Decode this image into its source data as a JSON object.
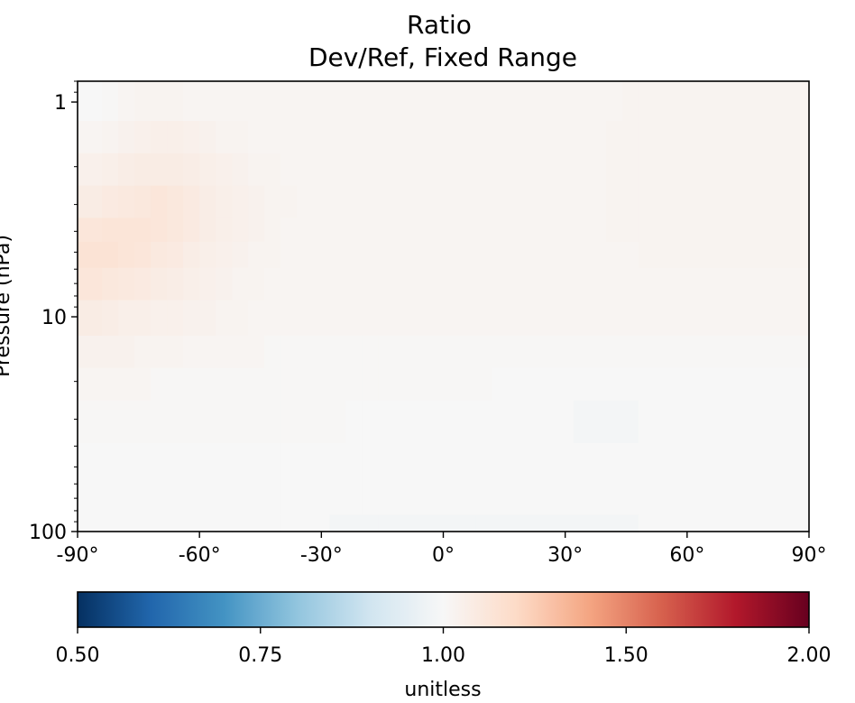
{
  "chart_data": {
    "type": "heatmap",
    "title": "Ratio",
    "subtitle": "Dev/Ref, Fixed Range",
    "xlabel": "",
    "ylabel": "Pressure (hPa)",
    "x_tick_labels": [
      "-90°",
      "-60°",
      "-30°",
      "0°",
      "30°",
      "60°",
      "90°"
    ],
    "x_tick_values": [
      -90,
      -60,
      -30,
      0,
      30,
      60,
      90
    ],
    "xlim": [
      -90,
      90
    ],
    "y_scale": "log",
    "ylim": [
      100,
      0.8
    ],
    "y_tick_labels": [
      "1",
      "10",
      "100"
    ],
    "y_tick_values": [
      1,
      10,
      100
    ],
    "grid": false,
    "colorbar": {
      "label": "unitless",
      "colormap": "RdBu_r",
      "vmin": 0.5,
      "vmax": 2.0,
      "tick_labels": [
        "0.50",
        "0.75",
        "1.00",
        "1.50",
        "2.00"
      ],
      "tick_values": [
        0.5,
        0.75,
        1.0,
        1.5,
        2.0
      ],
      "colors": [
        "#053061",
        "#2166ac",
        "#4393c3",
        "#92c5de",
        "#d1e5f0",
        "#f7f7f7",
        "#fddbc7",
        "#f4a582",
        "#d6604d",
        "#b2182b",
        "#67001f"
      ]
    },
    "x_centers": [
      -86,
      -82,
      -78,
      -74,
      -70,
      -66,
      -62,
      -58,
      -54,
      -50,
      -46,
      -42,
      -38,
      -34,
      -30,
      -26,
      -22,
      -18,
      -14,
      -10,
      -6,
      -2,
      2,
      6,
      10,
      14,
      18,
      22,
      26,
      30,
      34,
      38,
      42,
      46,
      50,
      54,
      58,
      62,
      66,
      70,
      74,
      78,
      82,
      86
    ],
    "levels_hPa": [
      1,
      1.5,
      2,
      3,
      4,
      5,
      7,
      10,
      15,
      20,
      30,
      50,
      70,
      100
    ],
    "values": [
      [
        1.0,
        1.01,
        1.02,
        1.03,
        1.03,
        1.03,
        1.02,
        1.02,
        1.02,
        1.02,
        1.02,
        1.02,
        1.02,
        1.02,
        1.02,
        1.02,
        1.02,
        1.02,
        1.02,
        1.02,
        1.02,
        1.02,
        1.02,
        1.02,
        1.02,
        1.02,
        1.02,
        1.02,
        1.02,
        1.02,
        1.02,
        1.02,
        1.02,
        1.03,
        1.03,
        1.03,
        1.03,
        1.03,
        1.03,
        1.03,
        1.03,
        1.03,
        1.03,
        1.03
      ],
      [
        1.02,
        1.03,
        1.04,
        1.05,
        1.06,
        1.06,
        1.05,
        1.04,
        1.03,
        1.03,
        1.02,
        1.02,
        1.02,
        1.02,
        1.02,
        1.02,
        1.02,
        1.02,
        1.02,
        1.02,
        1.02,
        1.02,
        1.02,
        1.02,
        1.02,
        1.02,
        1.02,
        1.02,
        1.02,
        1.02,
        1.02,
        1.02,
        1.03,
        1.03,
        1.03,
        1.03,
        1.03,
        1.03,
        1.03,
        1.03,
        1.03,
        1.03,
        1.03,
        1.03
      ],
      [
        1.05,
        1.06,
        1.07,
        1.08,
        1.08,
        1.08,
        1.07,
        1.06,
        1.05,
        1.04,
        1.03,
        1.03,
        1.02,
        1.02,
        1.02,
        1.02,
        1.02,
        1.02,
        1.02,
        1.02,
        1.02,
        1.02,
        1.02,
        1.02,
        1.02,
        1.02,
        1.02,
        1.02,
        1.02,
        1.02,
        1.02,
        1.02,
        1.03,
        1.03,
        1.03,
        1.03,
        1.03,
        1.03,
        1.03,
        1.03,
        1.03,
        1.03,
        1.03,
        1.03
      ],
      [
        1.08,
        1.09,
        1.1,
        1.11,
        1.12,
        1.11,
        1.09,
        1.07,
        1.06,
        1.05,
        1.04,
        1.03,
        1.03,
        1.02,
        1.02,
        1.02,
        1.02,
        1.02,
        1.02,
        1.02,
        1.02,
        1.02,
        1.02,
        1.02,
        1.02,
        1.02,
        1.02,
        1.02,
        1.02,
        1.02,
        1.02,
        1.02,
        1.03,
        1.03,
        1.03,
        1.03,
        1.03,
        1.03,
        1.03,
        1.03,
        1.03,
        1.03,
        1.03,
        1.03
      ],
      [
        1.12,
        1.13,
        1.13,
        1.13,
        1.12,
        1.11,
        1.09,
        1.07,
        1.06,
        1.05,
        1.04,
        1.03,
        1.02,
        1.02,
        1.02,
        1.02,
        1.02,
        1.02,
        1.02,
        1.02,
        1.02,
        1.02,
        1.02,
        1.02,
        1.02,
        1.02,
        1.02,
        1.02,
        1.02,
        1.02,
        1.02,
        1.02,
        1.03,
        1.03,
        1.03,
        1.03,
        1.03,
        1.03,
        1.03,
        1.03,
        1.03,
        1.03,
        1.03,
        1.03
      ],
      [
        1.14,
        1.14,
        1.13,
        1.12,
        1.1,
        1.09,
        1.07,
        1.06,
        1.05,
        1.04,
        1.03,
        1.03,
        1.02,
        1.02,
        1.02,
        1.02,
        1.02,
        1.02,
        1.02,
        1.02,
        1.02,
        1.02,
        1.02,
        1.02,
        1.02,
        1.02,
        1.02,
        1.02,
        1.02,
        1.02,
        1.02,
        1.02,
        1.02,
        1.02,
        1.03,
        1.03,
        1.03,
        1.03,
        1.03,
        1.03,
        1.03,
        1.03,
        1.03,
        1.03
      ],
      [
        1.12,
        1.11,
        1.1,
        1.09,
        1.08,
        1.07,
        1.06,
        1.05,
        1.04,
        1.03,
        1.03,
        1.02,
        1.02,
        1.02,
        1.02,
        1.02,
        1.02,
        1.02,
        1.02,
        1.02,
        1.02,
        1.02,
        1.02,
        1.02,
        1.02,
        1.02,
        1.02,
        1.02,
        1.02,
        1.02,
        1.02,
        1.02,
        1.02,
        1.02,
        1.02,
        1.02,
        1.02,
        1.02,
        1.02,
        1.02,
        1.02,
        1.02,
        1.02,
        1.02
      ],
      [
        1.08,
        1.07,
        1.06,
        1.06,
        1.05,
        1.05,
        1.04,
        1.04,
        1.03,
        1.03,
        1.02,
        1.02,
        1.02,
        1.02,
        1.02,
        1.02,
        1.02,
        1.02,
        1.02,
        1.02,
        1.02,
        1.02,
        1.02,
        1.02,
        1.02,
        1.02,
        1.02,
        1.02,
        1.02,
        1.02,
        1.02,
        1.02,
        1.02,
        1.02,
        1.02,
        1.02,
        1.02,
        1.02,
        1.02,
        1.02,
        1.02,
        1.02,
        1.02,
        1.02
      ],
      [
        1.04,
        1.04,
        1.04,
        1.03,
        1.03,
        1.03,
        1.02,
        1.02,
        1.02,
        1.02,
        1.02,
        1.01,
        1.01,
        1.01,
        1.01,
        1.01,
        1.01,
        1.01,
        1.01,
        1.01,
        1.01,
        1.01,
        1.01,
        1.01,
        1.01,
        1.01,
        1.01,
        1.01,
        1.01,
        1.01,
        1.01,
        1.01,
        1.01,
        1.01,
        1.01,
        1.01,
        1.01,
        1.01,
        1.01,
        1.01,
        1.01,
        1.01,
        1.01,
        1.01
      ],
      [
        1.02,
        1.02,
        1.02,
        1.02,
        1.01,
        1.01,
        1.01,
        1.01,
        1.01,
        1.01,
        1.01,
        1.01,
        1.01,
        1.01,
        1.01,
        1.01,
        1.01,
        1.01,
        1.01,
        1.01,
        1.01,
        1.01,
        1.01,
        1.01,
        1.01,
        1.0,
        1.0,
        1.0,
        1.0,
        1.0,
        1.0,
        1.0,
        1.0,
        1.0,
        1.0,
        1.0,
        1.0,
        1.0,
        1.0,
        1.0,
        1.0,
        1.0,
        1.0,
        1.0
      ],
      [
        1.01,
        1.01,
        1.01,
        1.01,
        1.01,
        1.01,
        1.01,
        1.01,
        1.01,
        1.01,
        1.01,
        1.01,
        1.01,
        1.01,
        1.01,
        1.01,
        1.0,
        1.0,
        1.0,
        1.0,
        1.0,
        1.0,
        1.0,
        1.0,
        1.0,
        1.0,
        1.0,
        1.0,
        1.0,
        1.0,
        0.99,
        0.99,
        0.99,
        0.99,
        1.0,
        1.0,
        1.0,
        1.0,
        1.0,
        1.0,
        1.0,
        1.0,
        1.0,
        1.0
      ],
      [
        1.0,
        1.0,
        1.0,
        1.0,
        1.0,
        1.0,
        1.0,
        1.0,
        1.0,
        1.0,
        1.0,
        1.0,
        1.0,
        1.0,
        1.0,
        1.0,
        1.0,
        1.0,
        1.0,
        1.0,
        1.0,
        1.0,
        1.0,
        1.0,
        1.0,
        1.0,
        1.0,
        1.0,
        1.0,
        1.0,
        1.0,
        1.0,
        1.0,
        1.0,
        1.0,
        1.0,
        1.0,
        1.0,
        1.0,
        1.0,
        1.0,
        1.0,
        1.0,
        1.0
      ],
      [
        1.0,
        1.0,
        1.0,
        1.0,
        1.0,
        1.0,
        1.0,
        1.0,
        1.0,
        1.0,
        1.0,
        1.0,
        1.0,
        1.0,
        1.0,
        1.0,
        1.0,
        1.0,
        1.0,
        1.0,
        1.0,
        1.0,
        1.0,
        1.0,
        1.0,
        1.0,
        1.0,
        1.0,
        1.0,
        1.0,
        1.0,
        1.0,
        1.0,
        1.0,
        1.0,
        1.0,
        1.0,
        1.0,
        1.0,
        1.0,
        1.0,
        1.0,
        1.0,
        1.0
      ],
      [
        1.0,
        1.0,
        1.0,
        1.0,
        1.0,
        1.0,
        1.0,
        1.0,
        1.0,
        1.0,
        1.0,
        1.0,
        1.0,
        1.0,
        1.0,
        0.99,
        0.99,
        0.99,
        0.99,
        0.99,
        0.99,
        0.99,
        0.99,
        0.99,
        0.99,
        0.99,
        0.99,
        0.99,
        0.99,
        0.99,
        0.99,
        0.99,
        0.99,
        0.99,
        1.0,
        1.0,
        1.0,
        1.0,
        1.0,
        1.0,
        1.0,
        1.0,
        1.0,
        1.0
      ]
    ]
  }
}
